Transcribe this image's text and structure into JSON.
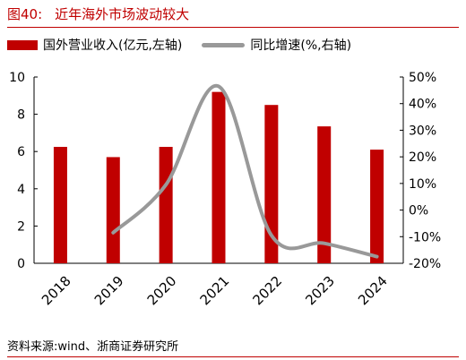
{
  "figure": {
    "number": "图40:",
    "title": "近年海外市场波动较大",
    "source": "资料来源:wind、浙商证券研究所"
  },
  "colors": {
    "accent": "#c00000",
    "bar": "#c00000",
    "line": "#999999"
  },
  "chart_data": {
    "type": "bar",
    "categories": [
      "2018",
      "2019",
      "2020",
      "2021",
      "2022",
      "2023",
      "2024"
    ],
    "series": [
      {
        "name": "国外营业收入(亿元,左轴)",
        "type": "bar",
        "axis": "left",
        "values": [
          6.25,
          5.7,
          6.25,
          9.2,
          8.5,
          7.35,
          6.1
        ]
      },
      {
        "name": "同比增速(%,右轴)",
        "type": "line",
        "axis": "right",
        "values": [
          null,
          -8.5,
          9.5,
          46.5,
          -9.5,
          -12.5,
          -17.5
        ]
      }
    ],
    "ylim_left": [
      0,
      10
    ],
    "yticks_left": [
      "0",
      "2",
      "4",
      "6",
      "8",
      "10"
    ],
    "ylim_right": [
      -20,
      50
    ],
    "yticks_right": [
      "-20%",
      "-10%",
      "0%",
      "10%",
      "20%",
      "30%",
      "40%",
      "50%"
    ],
    "legend_position": "top",
    "grid": false
  }
}
